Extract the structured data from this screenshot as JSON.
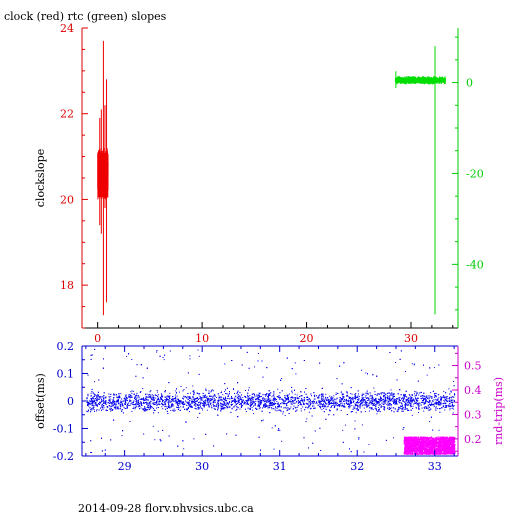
{
  "title": "clock (red) rtc (green) slopes",
  "footer": "2014-09-28 flory.physics.ubc.ca",
  "colors": {
    "red": "#ee0000",
    "green": "#00dd00",
    "blue": "#0000ee",
    "magenta": "#ff00ff",
    "axis": "#000000"
  },
  "chart_data": [
    {
      "type": "line",
      "title": "clock (red) rtc (green) slopes",
      "xlim": [
        -1.5,
        34.5
      ],
      "x_ticks": [
        0,
        10,
        20,
        30
      ],
      "y_left": {
        "label": "clockslope",
        "lim": [
          17.0,
          24.0
        ],
        "ticks": [
          18,
          20,
          22,
          24
        ],
        "color": "#dd0000"
      },
      "y_right": {
        "label": "",
        "lim": [
          -54,
          12
        ],
        "ticks": [
          0,
          -20,
          -40
        ],
        "color": "#00cc00"
      },
      "series": [
        {
          "name": "clock",
          "axis": "left",
          "color": "#ee0000",
          "x_range": [
            0.0,
            1.0
          ],
          "baseline": 20.6,
          "band": 0.6,
          "spikes": [
            [
              0.2,
              21.9,
              19.4
            ],
            [
              0.35,
              22.1,
              19.2
            ],
            [
              0.55,
              23.7,
              17.3
            ],
            [
              0.7,
              22.2,
              19.8
            ],
            [
              0.85,
              22.8,
              17.6
            ]
          ]
        },
        {
          "name": "rtc",
          "axis": "right",
          "color": "#00dd00",
          "x_range": [
            28.5,
            33.3
          ],
          "baseline": 0.5,
          "band": 0.9,
          "spikes": [
            [
              28.55,
              2.5,
              -1.2
            ],
            [
              32.3,
              8.0,
              -51.0
            ]
          ]
        }
      ]
    },
    {
      "type": "scatter",
      "xlim": [
        28.45,
        33.3
      ],
      "x_ticks": [
        29,
        30,
        31,
        32,
        33
      ],
      "y_left": {
        "label": "offset(ms)",
        "lim": [
          -0.2,
          0.2
        ],
        "ticks": [
          0.2,
          0.1,
          0,
          -0.1,
          -0.2
        ],
        "color": "#0000cc"
      },
      "y_right": {
        "label": "rnd-trip(ms)",
        "lim": [
          0.13,
          0.58
        ],
        "ticks": [
          0.5,
          0.4,
          0.3,
          0.2
        ],
        "color": "#cc00cc"
      },
      "series": [
        {
          "name": "offset",
          "axis": "left",
          "color": "#0000ee",
          "x_range": [
            28.5,
            33.25
          ],
          "center": 0.0,
          "spread": 0.03
        },
        {
          "name": "rnd-trip",
          "axis": "right",
          "color": "#ff00ff",
          "x_range": [
            32.6,
            33.25
          ],
          "center": 0.175,
          "spread": 0.035
        }
      ]
    }
  ]
}
